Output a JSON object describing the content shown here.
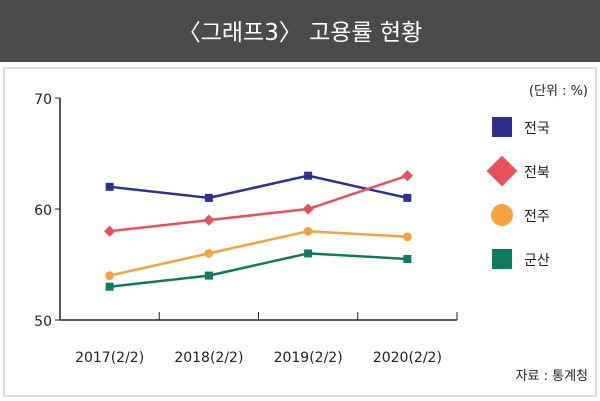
{
  "chart_data": {
    "type": "line",
    "title": "〈그래프3〉 고용률 현황",
    "unit_label": "(단위 : %)",
    "source": "자료 : 통계청",
    "categories": [
      "2017(2/2)",
      "2018(2/2)",
      "2019(2/2)",
      "2020(2/2)"
    ],
    "ylim": [
      50,
      70
    ],
    "yticks": [
      50,
      60,
      70
    ],
    "legend_position": "right",
    "series": [
      {
        "name": "전국",
        "values": [
          62,
          61,
          63,
          61
        ],
        "color": "#2e3192",
        "marker": "square"
      },
      {
        "name": "전북",
        "values": [
          58,
          59,
          60,
          63
        ],
        "color": "#e8505b",
        "marker": "diamond"
      },
      {
        "name": "전주",
        "values": [
          54,
          56,
          58,
          57.5
        ],
        "color": "#f5a340",
        "marker": "circle"
      },
      {
        "name": "군산",
        "values": [
          53,
          54,
          56,
          55.5
        ],
        "color": "#0e7a5f",
        "marker": "square"
      }
    ]
  }
}
